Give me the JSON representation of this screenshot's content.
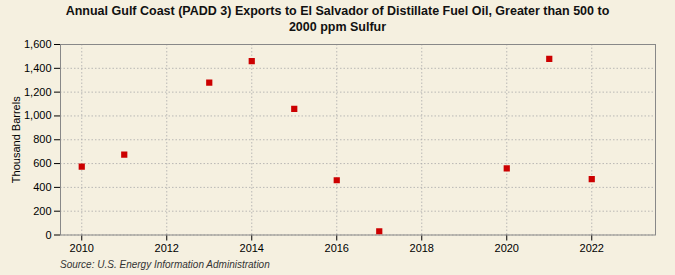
{
  "chart_data": {
    "type": "scatter",
    "title": "Annual Gulf Coast (PADD 3) Exports to El Salvador of Distillate Fuel Oil, Greater than 500 to\n2000 ppm Sulfur",
    "ylabel": "Thousand Barrels",
    "source": "Source: U.S. Energy Information Administration",
    "x": [
      2010,
      2011,
      2013,
      2014,
      2015,
      2016,
      2017,
      2020,
      2021,
      2022
    ],
    "values": [
      575,
      675,
      1280,
      1460,
      1060,
      460,
      30,
      560,
      1480,
      470
    ],
    "color": "#cc0000",
    "marker": "square",
    "xlim": [
      2009.5,
      2023.5
    ],
    "xticks": [
      2010,
      2012,
      2014,
      2016,
      2018,
      2020,
      2022
    ],
    "ylim": [
      0,
      1600
    ],
    "yticks": [
      0,
      200,
      400,
      600,
      800,
      {
        "value": 1000,
        "label": "1,000"
      },
      {
        "value": 1200,
        "label": "1,200"
      },
      {
        "value": 1400,
        "label": "1,400"
      },
      {
        "value": 1600,
        "label": "1,600"
      }
    ],
    "grid": true
  }
}
